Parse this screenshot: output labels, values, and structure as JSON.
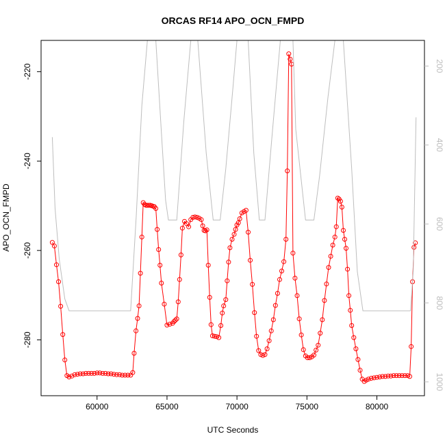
{
  "chart_data": {
    "type": "line",
    "title": "ORCAS RF14 APO_OCN_FMPD",
    "xlabel": "UTC Seconds",
    "ylabel": "APO_OCN_FMPD",
    "xlim": [
      56000,
      83400
    ],
    "ylim": [
      -292.5,
      -213
    ],
    "x_ticks": [
      60000,
      65000,
      70000,
      75000,
      80000
    ],
    "x_tick_labels": [
      "60000",
      "65000",
      "70000",
      "75000",
      "80000"
    ],
    "y_ticks": [
      -220,
      -240,
      -260,
      -280
    ],
    "y_tick_labels": [
      "-220",
      "-240",
      "-260",
      "-280"
    ],
    "secondary_axis": {
      "side": "right",
      "reversed": true,
      "ylim": [
        1035,
        135
      ],
      "ticks": [
        200,
        400,
        600,
        800,
        1000
      ],
      "tick_labels": [
        "200",
        "400",
        "600",
        "800",
        "1000"
      ],
      "color": "#bdbdbd"
    },
    "grid": false,
    "series": [
      {
        "style": "line+circles",
        "color": "#ff0000",
        "points": [
          [
            56800,
            -258.2
          ],
          [
            56950,
            -259
          ],
          [
            57100,
            -263.2
          ],
          [
            57250,
            -267
          ],
          [
            57400,
            -272.5
          ],
          [
            57550,
            -278.8
          ],
          [
            57700,
            -284.5
          ],
          [
            57850,
            -288
          ],
          [
            58000,
            -288.3
          ],
          [
            58200,
            -288.1
          ],
          [
            58400,
            -287.8
          ],
          [
            58600,
            -287.7
          ],
          [
            58800,
            -287.6
          ],
          [
            59000,
            -287.6
          ],
          [
            59200,
            -287.5
          ],
          [
            59400,
            -287.5
          ],
          [
            59600,
            -287.5
          ],
          [
            59800,
            -287.5
          ],
          [
            60000,
            -287.4
          ],
          [
            60200,
            -287.4
          ],
          [
            60400,
            -287.5
          ],
          [
            60600,
            -287.5
          ],
          [
            60800,
            -287.6
          ],
          [
            61000,
            -287.6
          ],
          [
            61200,
            -287.7
          ],
          [
            61400,
            -287.8
          ],
          [
            61600,
            -287.8
          ],
          [
            61800,
            -287.9
          ],
          [
            62000,
            -287.9
          ],
          [
            62200,
            -287.9
          ],
          [
            62400,
            -287.9
          ],
          [
            62550,
            -287.3
          ],
          [
            62650,
            -283
          ],
          [
            62780,
            -278
          ],
          [
            62900,
            -275.2
          ],
          [
            63000,
            -272.4
          ],
          [
            63100,
            -265.1
          ],
          [
            63200,
            -257
          ],
          [
            63300,
            -249.3
          ],
          [
            63400,
            -249.7
          ],
          [
            63500,
            -249.9
          ],
          [
            63600,
            -249.9
          ],
          [
            63700,
            -249.9
          ],
          [
            63800,
            -249.9
          ],
          [
            63900,
            -250
          ],
          [
            64000,
            -250.1
          ],
          [
            64100,
            -250.2
          ],
          [
            64200,
            -250.6
          ],
          [
            64300,
            -255.3
          ],
          [
            64400,
            -259.8
          ],
          [
            64500,
            -263.3
          ],
          [
            64600,
            -267.3
          ],
          [
            64800,
            -272
          ],
          [
            65000,
            -276.7
          ],
          [
            65200,
            -276.5
          ],
          [
            65400,
            -276.3
          ],
          [
            65500,
            -275.9
          ],
          [
            65600,
            -275.6
          ],
          [
            65700,
            -275.3
          ],
          [
            65800,
            -271.5
          ],
          [
            65900,
            -266.5
          ],
          [
            66000,
            -261
          ],
          [
            66100,
            -255
          ],
          [
            66250,
            -253.5
          ],
          [
            66400,
            -254
          ],
          [
            66550,
            -254.7
          ],
          [
            66700,
            -253.1
          ],
          [
            66850,
            -252.6
          ],
          [
            67000,
            -252.5
          ],
          [
            67150,
            -252.6
          ],
          [
            67300,
            -252.8
          ],
          [
            67450,
            -253.1
          ],
          [
            67550,
            -254.5
          ],
          [
            67650,
            -255.5
          ],
          [
            67750,
            -255.6
          ],
          [
            67850,
            -255.4
          ],
          [
            67950,
            -263.3
          ],
          [
            68050,
            -270.5
          ],
          [
            68150,
            -276.6
          ],
          [
            68250,
            -279.1
          ],
          [
            68400,
            -279.2
          ],
          [
            68550,
            -279.3
          ],
          [
            68700,
            -279.5
          ],
          [
            68850,
            -276.8
          ],
          [
            68950,
            -274
          ],
          [
            69050,
            -272.4
          ],
          [
            69200,
            -271
          ],
          [
            69300,
            -266.8
          ],
          [
            69400,
            -262.6
          ],
          [
            69500,
            -259.4
          ],
          [
            69650,
            -257.5
          ],
          [
            69800,
            -256.4
          ],
          [
            69900,
            -255.3
          ],
          [
            70000,
            -254.3
          ],
          [
            70100,
            -253.8
          ],
          [
            70200,
            -252.9
          ],
          [
            70350,
            -251.6
          ],
          [
            70500,
            -251.3
          ],
          [
            70650,
            -251
          ],
          [
            70800,
            -255.9
          ],
          [
            70950,
            -262.2
          ],
          [
            71100,
            -267.6
          ],
          [
            71250,
            -273.9
          ],
          [
            71400,
            -279.2
          ],
          [
            71550,
            -282.4
          ],
          [
            71700,
            -283.3
          ],
          [
            71850,
            -283.5
          ],
          [
            72000,
            -283.3
          ],
          [
            72150,
            -282
          ],
          [
            72300,
            -280.2
          ],
          [
            72450,
            -278
          ],
          [
            72600,
            -275.5
          ],
          [
            72750,
            -272.3
          ],
          [
            72900,
            -269.6
          ],
          [
            73050,
            -266.5
          ],
          [
            73200,
            -264.6
          ],
          [
            73350,
            -262.5
          ],
          [
            73500,
            -257.5
          ],
          [
            73600,
            -242.2
          ],
          [
            73700,
            -216
          ],
          [
            73800,
            -217.2
          ],
          [
            73900,
            -218.3
          ],
          [
            74000,
            -260.6
          ],
          [
            74150,
            -266.2
          ],
          [
            74300,
            -270.1
          ],
          [
            74450,
            -275.3
          ],
          [
            74600,
            -278.9
          ],
          [
            74750,
            -282.2
          ],
          [
            74900,
            -283.6
          ],
          [
            75050,
            -284
          ],
          [
            75200,
            -284
          ],
          [
            75350,
            -283.8
          ],
          [
            75500,
            -283.4
          ],
          [
            75650,
            -282.3
          ],
          [
            75800,
            -281.2
          ],
          [
            75950,
            -278.5
          ],
          [
            76100,
            -275.5
          ],
          [
            76250,
            -271.2
          ],
          [
            76400,
            -267.5
          ],
          [
            76550,
            -263.8
          ],
          [
            76700,
            -261.3
          ],
          [
            76850,
            -258.8
          ],
          [
            77000,
            -257
          ],
          [
            77100,
            -254.7
          ],
          [
            77200,
            -248.3
          ],
          [
            77300,
            -248.5
          ],
          [
            77400,
            -249
          ],
          [
            77500,
            -250.3
          ],
          [
            77600,
            -255.5
          ],
          [
            77700,
            -257.5
          ],
          [
            77800,
            -259.5
          ],
          [
            77900,
            -264.2
          ],
          [
            78000,
            -270.1
          ],
          [
            78100,
            -273.4
          ],
          [
            78200,
            -276.8
          ],
          [
            78350,
            -279.5
          ],
          [
            78500,
            -282
          ],
          [
            78650,
            -284.4
          ],
          [
            78800,
            -286.8
          ],
          [
            78950,
            -288.8
          ],
          [
            79100,
            -289.3
          ],
          [
            79250,
            -289
          ],
          [
            79400,
            -288.8
          ],
          [
            79600,
            -288.6
          ],
          [
            79800,
            -288.5
          ],
          [
            80000,
            -288.4
          ],
          [
            80200,
            -288.3
          ],
          [
            80400,
            -288.2
          ],
          [
            80600,
            -288.2
          ],
          [
            80800,
            -288.1
          ],
          [
            81000,
            -288.1
          ],
          [
            81200,
            -288.0
          ],
          [
            81400,
            -288.0
          ],
          [
            81600,
            -288.0
          ],
          [
            81800,
            -288.0
          ],
          [
            82000,
            -288.0
          ],
          [
            82200,
            -288.0
          ],
          [
            82350,
            -288.2
          ],
          [
            82450,
            -281.5
          ],
          [
            82550,
            -267
          ],
          [
            82650,
            -259.3
          ],
          [
            82750,
            -258.3
          ]
        ]
      },
      {
        "axis": "secondary",
        "style": "line",
        "color": "#bdbdbd",
        "points": [
          [
            56800,
            380
          ],
          [
            57000,
            560
          ],
          [
            57300,
            690
          ],
          [
            57700,
            790
          ],
          [
            58000,
            820
          ],
          [
            62400,
            820
          ],
          [
            62800,
            580
          ],
          [
            63200,
            300
          ],
          [
            63600,
            135
          ],
          [
            64200,
            135
          ],
          [
            64600,
            370
          ],
          [
            64900,
            540
          ],
          [
            65100,
            590
          ],
          [
            65700,
            590
          ],
          [
            66200,
            340
          ],
          [
            66700,
            135
          ],
          [
            67200,
            135
          ],
          [
            67800,
            420
          ],
          [
            68300,
            590
          ],
          [
            68800,
            590
          ],
          [
            69200,
            460
          ],
          [
            69700,
            260
          ],
          [
            70000,
            135
          ],
          [
            70800,
            135
          ],
          [
            71200,
            420
          ],
          [
            71600,
            590
          ],
          [
            72000,
            590
          ],
          [
            72500,
            380
          ],
          [
            73100,
            135
          ],
          [
            74000,
            135
          ],
          [
            74200,
            360
          ],
          [
            74900,
            590
          ],
          [
            75500,
            590
          ],
          [
            75900,
            480
          ],
          [
            76500,
            280
          ],
          [
            77000,
            135
          ],
          [
            77600,
            135
          ],
          [
            78200,
            460
          ],
          [
            78600,
            720
          ],
          [
            79000,
            820
          ],
          [
            82400,
            820
          ],
          [
            82600,
            720
          ],
          [
            82800,
            330
          ]
        ]
      }
    ]
  }
}
